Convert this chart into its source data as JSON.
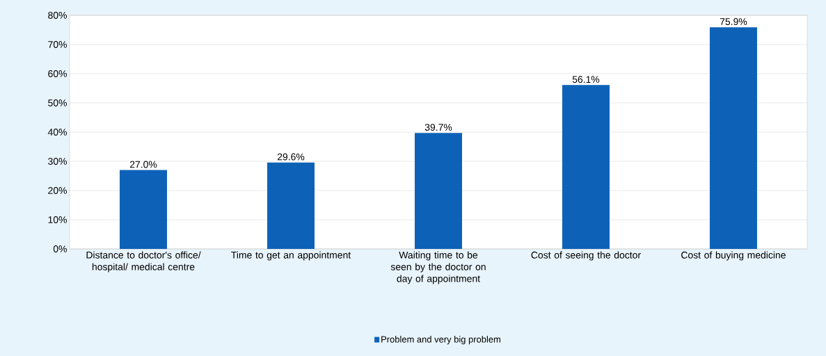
{
  "chart_data": {
    "type": "bar",
    "categories": [
      "Distance to doctor's office/ hospital/ medical centre",
      "Time to get an appointment",
      "Waiting time to be seen by the doctor on day of appointment",
      "Cost of seeing the doctor",
      "Cost of buying medicine"
    ],
    "series": [
      {
        "name": "Problem and very big problem",
        "color": "#0d62b8",
        "values": [
          27.0,
          29.6,
          39.7,
          56.1,
          75.9
        ]
      }
    ],
    "value_labels": [
      "27.0%",
      "29.6%",
      "39.7%",
      "56.1%",
      "75.9%"
    ],
    "ylim": [
      0,
      80
    ],
    "yticks": [
      {
        "value": 0,
        "label": "0%"
      },
      {
        "value": 10,
        "label": "10%"
      },
      {
        "value": 20,
        "label": "20%"
      },
      {
        "value": 30,
        "label": "30%"
      },
      {
        "value": 40,
        "label": "40%"
      },
      {
        "value": 50,
        "label": "50%"
      },
      {
        "value": 60,
        "label": "60%"
      },
      {
        "value": 70,
        "label": "70%"
      },
      {
        "value": 80,
        "label": "80%"
      }
    ],
    "grid": "y",
    "legend": "bottom"
  }
}
